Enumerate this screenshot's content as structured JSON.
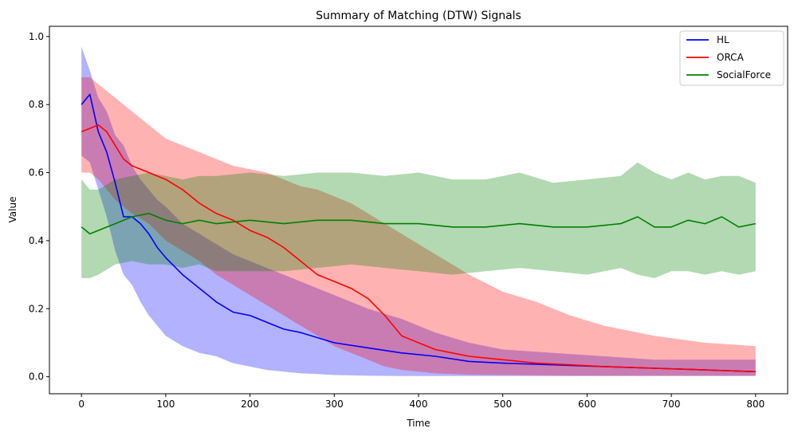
{
  "chart_data": {
    "type": "line",
    "title": "Summary of Matching (DTW) Signals",
    "xlabel": "Time",
    "ylabel": "Value",
    "xlim": [
      -38,
      838
    ],
    "ylim": [
      -0.05,
      1.03
    ],
    "xticks": [
      0,
      100,
      200,
      300,
      400,
      500,
      600,
      700,
      800
    ],
    "xtick_labels": [
      "0",
      "100",
      "200",
      "300",
      "400",
      "500",
      "600",
      "700",
      "800"
    ],
    "yticks": [
      0.0,
      0.2,
      0.4,
      0.6,
      0.8,
      1.0
    ],
    "ytick_labels": [
      "0.0",
      "0.2",
      "0.4",
      "0.6",
      "0.8",
      "1.0"
    ],
    "grid": false,
    "legend_position": "top-right",
    "series": [
      {
        "name": "HL",
        "color": "#0000ff",
        "band_alpha": 0.3,
        "x": [
          0,
          10,
          20,
          30,
          40,
          50,
          60,
          70,
          80,
          90,
          100,
          120,
          140,
          160,
          180,
          200,
          220,
          240,
          260,
          280,
          300,
          340,
          380,
          420,
          460,
          500,
          560,
          620,
          680,
          740,
          800
        ],
        "mean": [
          0.8,
          0.83,
          0.72,
          0.66,
          0.57,
          0.47,
          0.47,
          0.45,
          0.42,
          0.38,
          0.35,
          0.3,
          0.26,
          0.22,
          0.19,
          0.18,
          0.16,
          0.14,
          0.13,
          0.115,
          0.1,
          0.085,
          0.07,
          0.06,
          0.045,
          0.04,
          0.035,
          0.03,
          0.025,
          0.02,
          0.015
        ],
        "lower": [
          0.65,
          0.63,
          0.55,
          0.47,
          0.37,
          0.3,
          0.27,
          0.22,
          0.18,
          0.15,
          0.12,
          0.09,
          0.07,
          0.06,
          0.04,
          0.03,
          0.02,
          0.015,
          0.01,
          0.008,
          0.005,
          0.003,
          0.002,
          0.002,
          0.002,
          0.002,
          0.002,
          0.002,
          0.002,
          0.002,
          0.002
        ],
        "upper": [
          0.97,
          0.9,
          0.82,
          0.78,
          0.71,
          0.68,
          0.62,
          0.58,
          0.55,
          0.52,
          0.5,
          0.45,
          0.42,
          0.39,
          0.36,
          0.34,
          0.32,
          0.3,
          0.28,
          0.26,
          0.24,
          0.2,
          0.17,
          0.13,
          0.1,
          0.08,
          0.07,
          0.06,
          0.05,
          0.05,
          0.05
        ]
      },
      {
        "name": "ORCA",
        "color": "#ff0000",
        "band_alpha": 0.3,
        "x": [
          0,
          10,
          20,
          30,
          40,
          50,
          60,
          80,
          100,
          120,
          140,
          160,
          180,
          200,
          220,
          240,
          260,
          280,
          300,
          320,
          340,
          360,
          380,
          400,
          420,
          440,
          460,
          500,
          540,
          580,
          620,
          680,
          740,
          800
        ],
        "mean": [
          0.72,
          0.73,
          0.74,
          0.72,
          0.68,
          0.64,
          0.62,
          0.6,
          0.58,
          0.55,
          0.51,
          0.48,
          0.46,
          0.43,
          0.41,
          0.38,
          0.34,
          0.3,
          0.28,
          0.26,
          0.23,
          0.18,
          0.12,
          0.1,
          0.08,
          0.07,
          0.06,
          0.05,
          0.04,
          0.035,
          0.03,
          0.025,
          0.02,
          0.015
        ],
        "lower": [
          0.6,
          0.6,
          0.58,
          0.55,
          0.52,
          0.5,
          0.48,
          0.45,
          0.4,
          0.37,
          0.34,
          0.3,
          0.27,
          0.24,
          0.21,
          0.18,
          0.15,
          0.12,
          0.09,
          0.07,
          0.05,
          0.03,
          0.02,
          0.015,
          0.01,
          0.008,
          0.006,
          0.005,
          0.004,
          0.003,
          0.003,
          0.003,
          0.003,
          0.003
        ],
        "upper": [
          0.88,
          0.88,
          0.86,
          0.84,
          0.82,
          0.8,
          0.78,
          0.74,
          0.7,
          0.68,
          0.66,
          0.64,
          0.62,
          0.61,
          0.6,
          0.58,
          0.56,
          0.55,
          0.53,
          0.51,
          0.48,
          0.45,
          0.42,
          0.39,
          0.36,
          0.33,
          0.3,
          0.25,
          0.22,
          0.18,
          0.15,
          0.12,
          0.1,
          0.09
        ]
      },
      {
        "name": "SocialForce",
        "color": "#008000",
        "band_alpha": 0.3,
        "x": [
          0,
          10,
          20,
          40,
          60,
          80,
          100,
          120,
          140,
          160,
          200,
          240,
          280,
          320,
          360,
          400,
          440,
          480,
          520,
          560,
          600,
          640,
          660,
          680,
          700,
          720,
          740,
          760,
          780,
          800
        ],
        "mean": [
          0.44,
          0.42,
          0.43,
          0.45,
          0.47,
          0.48,
          0.46,
          0.45,
          0.46,
          0.45,
          0.46,
          0.45,
          0.46,
          0.46,
          0.45,
          0.45,
          0.44,
          0.44,
          0.45,
          0.44,
          0.44,
          0.45,
          0.47,
          0.44,
          0.44,
          0.46,
          0.45,
          0.47,
          0.44,
          0.45
        ],
        "lower": [
          0.29,
          0.29,
          0.3,
          0.33,
          0.34,
          0.33,
          0.33,
          0.32,
          0.33,
          0.31,
          0.31,
          0.31,
          0.32,
          0.33,
          0.32,
          0.31,
          0.3,
          0.31,
          0.32,
          0.31,
          0.3,
          0.32,
          0.3,
          0.29,
          0.31,
          0.31,
          0.3,
          0.31,
          0.3,
          0.31
        ],
        "upper": [
          0.58,
          0.55,
          0.55,
          0.58,
          0.59,
          0.6,
          0.59,
          0.58,
          0.59,
          0.59,
          0.6,
          0.59,
          0.6,
          0.6,
          0.59,
          0.6,
          0.58,
          0.58,
          0.6,
          0.57,
          0.58,
          0.59,
          0.63,
          0.6,
          0.58,
          0.6,
          0.58,
          0.59,
          0.59,
          0.57
        ]
      }
    ]
  }
}
